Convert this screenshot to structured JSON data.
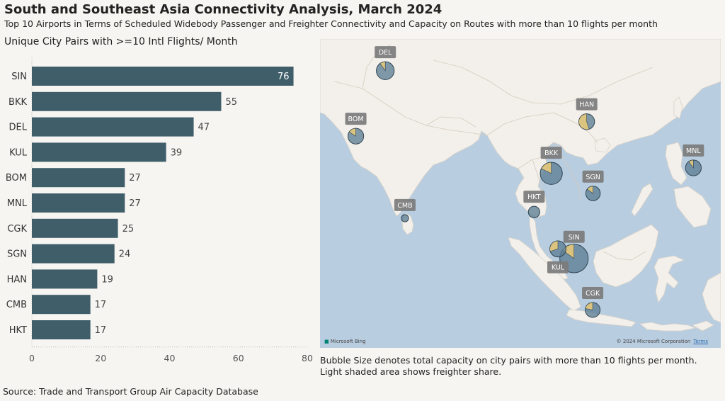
{
  "title": "South and Southeast Asia Connectivity Analysis, March 2024",
  "subtitle": "Top 10 Airports in Terms of Scheduled Widebody Passenger and Freighter Connectivity and Capacity on Routes with more than 10 flights per month",
  "source": "Source: Trade and Transport Group Air Capacity Database",
  "colors": {
    "bar": "#3f5e6a",
    "bubble": "#5d7f95",
    "freighter": "#e5c97a",
    "water": "#b9cde0",
    "land": "#f3f0eb",
    "label_bg": "#7b7b7b"
  },
  "chart_data": [
    {
      "type": "bar",
      "orientation": "horizontal",
      "title": "Unique City Pairs with >=10 Intl Flights/ Month",
      "categories": [
        "SIN",
        "BKK",
        "DEL",
        "KUL",
        "BOM",
        "MNL",
        "CGK",
        "SGN",
        "HAN",
        "CMB",
        "HKT"
      ],
      "values": [
        76,
        55,
        47,
        39,
        27,
        27,
        25,
        24,
        19,
        17,
        17
      ],
      "xlim": [
        0,
        80
      ],
      "xticks": [
        "0",
        "20",
        "40",
        "60",
        "80"
      ],
      "grid": false
    },
    {
      "type": "scatter",
      "subtype": "bubble-pie-map",
      "note_line1": "Bubble Size denotes total capacity on city pairs with more than 10 flights per month.",
      "note_line2": "Light shaded area shows freighter share.",
      "credit_left": "Microsoft Bing",
      "credit_right": "© 2024 Microsoft Corporation",
      "credit_link": "Terms",
      "airports": [
        {
          "code": "DEL",
          "lon": 77.1,
          "lat": 28.6,
          "relative_capacity": 0.42,
          "freighter_share": 0.1
        },
        {
          "code": "BOM",
          "lon": 72.9,
          "lat": 19.1,
          "relative_capacity": 0.37,
          "freighter_share": 0.16
        },
        {
          "code": "HAN",
          "lon": 105.8,
          "lat": 21.2,
          "relative_capacity": 0.37,
          "freighter_share": 0.55
        },
        {
          "code": "MNL",
          "lon": 121.0,
          "lat": 14.5,
          "relative_capacity": 0.37,
          "freighter_share": 0.1
        },
        {
          "code": "BKK",
          "lon": 100.75,
          "lat": 13.7,
          "relative_capacity": 0.52,
          "freighter_share": 0.18
        },
        {
          "code": "SGN",
          "lon": 106.7,
          "lat": 10.8,
          "relative_capacity": 0.34,
          "freighter_share": 0.15
        },
        {
          "code": "HKT",
          "lon": 98.3,
          "lat": 8.1,
          "relative_capacity": 0.27,
          "freighter_share": 0.0
        },
        {
          "code": "CMB",
          "lon": 79.9,
          "lat": 7.2,
          "relative_capacity": 0.17,
          "freighter_share": 0.0
        },
        {
          "code": "SIN",
          "lon": 103.99,
          "lat": 1.36,
          "relative_capacity": 0.67,
          "freighter_share": 0.15
        },
        {
          "code": "KUL",
          "lon": 101.7,
          "lat": 2.75,
          "relative_capacity": 0.38,
          "freighter_share": 0.3
        },
        {
          "code": "CGK",
          "lon": 106.65,
          "lat": -6.1,
          "relative_capacity": 0.35,
          "freighter_share": 0.22
        }
      ]
    }
  ]
}
